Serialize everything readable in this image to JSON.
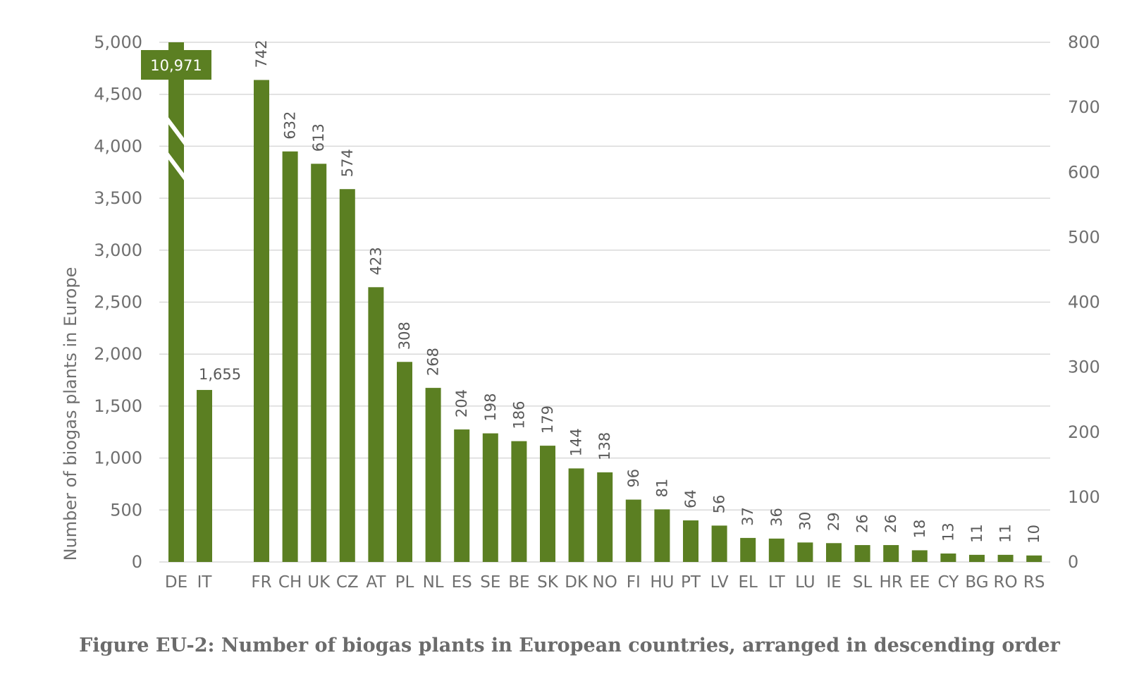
{
  "chart_data": {
    "type": "bar",
    "ylabel": "Number of biogas plants in Europe",
    "primary_axis": {
      "range": [
        0,
        5000
      ],
      "ticks": [
        "0",
        "500",
        "1,000",
        "1,500",
        "2,000",
        "2,500",
        "3,000",
        "3,500",
        "4,000",
        "4,500",
        "5,000"
      ]
    },
    "secondary_axis": {
      "range": [
        0,
        800
      ],
      "ticks": [
        "0",
        "100",
        "200",
        "300",
        "400",
        "500",
        "600",
        "700",
        "800"
      ]
    },
    "grid": true,
    "color": "#5b7f22",
    "primary_series": [
      {
        "category": "DE",
        "value": 10971,
        "label": "10,971",
        "axis_break": true
      },
      {
        "category": "IT",
        "value": 1655,
        "label": "1,655"
      }
    ],
    "secondary_series": [
      {
        "category": "FR",
        "value": 742,
        "label": "742"
      },
      {
        "category": "CH",
        "value": 632,
        "label": "632"
      },
      {
        "category": "UK",
        "value": 613,
        "label": "613"
      },
      {
        "category": "CZ",
        "value": 574,
        "label": "574"
      },
      {
        "category": "AT",
        "value": 423,
        "label": "423"
      },
      {
        "category": "PL",
        "value": 308,
        "label": "308"
      },
      {
        "category": "NL",
        "value": 268,
        "label": "268"
      },
      {
        "category": "ES",
        "value": 204,
        "label": "204"
      },
      {
        "category": "SE",
        "value": 198,
        "label": "198"
      },
      {
        "category": "BE",
        "value": 186,
        "label": "186"
      },
      {
        "category": "SK",
        "value": 179,
        "label": "179"
      },
      {
        "category": "DK",
        "value": 144,
        "label": "144"
      },
      {
        "category": "NO",
        "value": 138,
        "label": "138"
      },
      {
        "category": "FI",
        "value": 96,
        "label": "96"
      },
      {
        "category": "HU",
        "value": 81,
        "label": "81"
      },
      {
        "category": "PT",
        "value": 64,
        "label": "64"
      },
      {
        "category": "LV",
        "value": 56,
        "label": "56"
      },
      {
        "category": "EL",
        "value": 37,
        "label": "37"
      },
      {
        "category": "LT",
        "value": 36,
        "label": "36"
      },
      {
        "category": "LU",
        "value": 30,
        "label": "30"
      },
      {
        "category": "IE",
        "value": 29,
        "label": "29"
      },
      {
        "category": "SL",
        "value": 26,
        "label": "26"
      },
      {
        "category": "HR",
        "value": 26,
        "label": "26"
      },
      {
        "category": "EE",
        "value": 18,
        "label": "18"
      },
      {
        "category": "CY",
        "value": 13,
        "label": "13"
      },
      {
        "category": "BG",
        "value": 11,
        "label": "11"
      },
      {
        "category": "RO",
        "value": 11,
        "label": "11"
      },
      {
        "category": "RS",
        "value": 10,
        "label": "10"
      }
    ]
  },
  "caption": "Figure EU-2: Number of biogas plants in European countries, arranged in descending order"
}
